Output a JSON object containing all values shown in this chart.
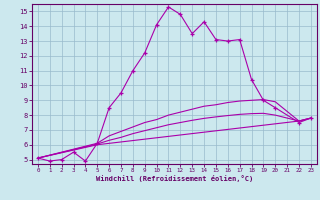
{
  "xlabel": "Windchill (Refroidissement éolien,°C)",
  "bg_color": "#cce8ee",
  "line_color": "#aa00aa",
  "grid_color": "#99bbcc",
  "axis_color": "#660066",
  "text_color": "#660066",
  "xlim": [
    -0.5,
    23.5
  ],
  "ylim": [
    4.7,
    15.5
  ],
  "xticks": [
    0,
    1,
    2,
    3,
    4,
    5,
    6,
    7,
    8,
    9,
    10,
    11,
    12,
    13,
    14,
    15,
    16,
    17,
    18,
    19,
    20,
    21,
    22,
    23
  ],
  "yticks": [
    5,
    6,
    7,
    8,
    9,
    10,
    11,
    12,
    13,
    14,
    15
  ],
  "lines": [
    {
      "x": [
        0,
        1,
        2,
        3,
        4,
        5,
        6,
        7,
        8,
        9,
        10,
        11,
        12,
        13,
        14,
        15,
        16,
        17,
        18,
        19,
        20,
        22,
        23
      ],
      "y": [
        5.1,
        4.9,
        5.0,
        5.5,
        4.9,
        6.1,
        8.5,
        9.5,
        11.0,
        12.2,
        14.1,
        15.3,
        14.8,
        13.5,
        14.3,
        13.1,
        13.0,
        13.1,
        10.4,
        9.0,
        8.5,
        7.5,
        7.8
      ],
      "marker": "+"
    },
    {
      "x": [
        0,
        5,
        22,
        23
      ],
      "y": [
        5.1,
        6.0,
        7.6,
        7.8
      ],
      "marker": null
    },
    {
      "x": [
        0,
        5,
        6,
        7,
        8,
        9,
        10,
        11,
        12,
        13,
        14,
        15,
        16,
        17,
        18,
        19,
        20,
        22,
        23
      ],
      "y": [
        5.1,
        6.1,
        6.6,
        6.9,
        7.2,
        7.5,
        7.7,
        8.0,
        8.2,
        8.4,
        8.6,
        8.7,
        8.85,
        8.95,
        9.0,
        9.05,
        8.9,
        7.6,
        7.8
      ],
      "marker": null
    },
    {
      "x": [
        0,
        5,
        6,
        7,
        8,
        9,
        10,
        11,
        12,
        13,
        14,
        15,
        16,
        17,
        18,
        19,
        20,
        22,
        23
      ],
      "y": [
        5.1,
        6.05,
        6.3,
        6.5,
        6.75,
        6.95,
        7.15,
        7.35,
        7.5,
        7.65,
        7.78,
        7.88,
        7.97,
        8.05,
        8.1,
        8.12,
        8.0,
        7.6,
        7.8
      ],
      "marker": null
    }
  ]
}
